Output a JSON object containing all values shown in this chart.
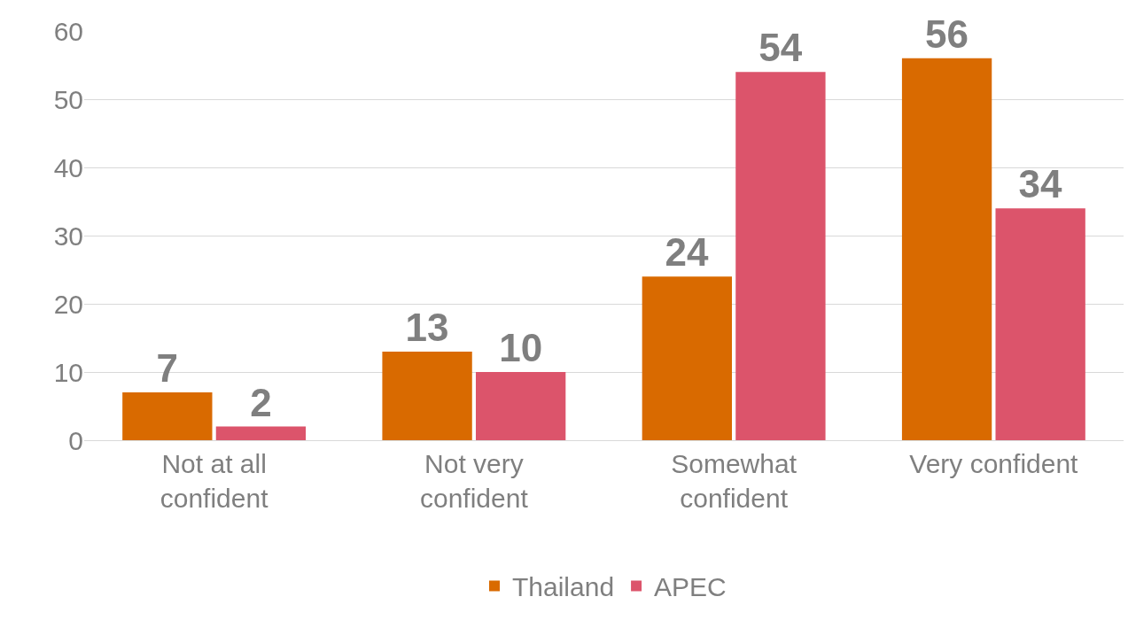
{
  "chart_data": {
    "type": "bar",
    "categories": [
      "Not at all confident",
      "Not very confident",
      "Somewhat confident",
      "Very confident"
    ],
    "series": [
      {
        "name": "Thailand",
        "color": "#d96a00",
        "values": [
          7,
          13,
          24,
          56
        ]
      },
      {
        "name": "APEC",
        "color": "#dc546b",
        "values": [
          2,
          10,
          54,
          34
        ]
      }
    ],
    "ylim": [
      0,
      60
    ],
    "yticks": [
      0,
      10,
      20,
      30,
      40,
      50,
      60
    ],
    "grid": "y",
    "legend": "bottom",
    "data_labels": true
  }
}
